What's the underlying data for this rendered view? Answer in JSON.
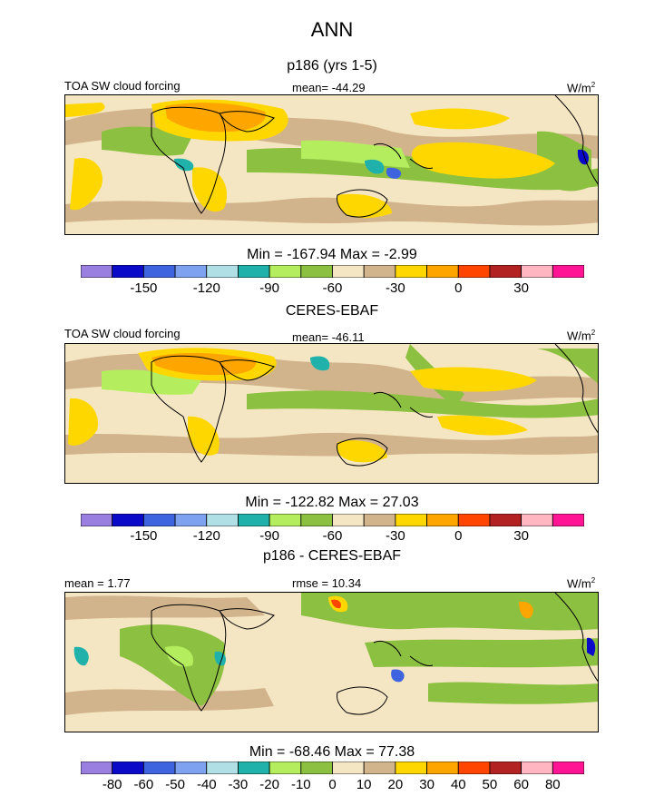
{
  "title": "ANN",
  "panels": [
    {
      "subtitle": "p186 (yrs 1-5)",
      "left_label": "TOA SW cloud forcing",
      "center_label": "mean= -44.29",
      "units": "W/m",
      "units_sup": "2",
      "minmax": "Min = -167.94 Max =  -2.99",
      "colorbar_ticks": [
        "-150",
        "-120",
        "-90",
        "-60",
        "-30",
        "0",
        "30"
      ]
    },
    {
      "subtitle": "CERES-EBAF",
      "left_label": "TOA SW cloud forcing",
      "center_label": "mean= -46.11",
      "units": "W/m",
      "units_sup": "2",
      "minmax": "Min = -122.82 Max =  27.03",
      "colorbar_ticks": [
        "-150",
        "-120",
        "-90",
        "-60",
        "-30",
        "0",
        "30"
      ]
    },
    {
      "subtitle": "p186 - CERES-EBAF",
      "left_label": "mean =   1.77",
      "center_label": "rmse =  10.34",
      "units": "W/m",
      "units_sup": "2",
      "minmax": "Min = -68.46 Max =  77.38",
      "colorbar_ticks": [
        "-80",
        "-60",
        "-50",
        "-40",
        "-30",
        "-20",
        "-10",
        "0",
        "10",
        "20",
        "30",
        "40",
        "50",
        "60",
        "80"
      ]
    }
  ],
  "colors": {
    "palette": [
      "#9b7fe0",
      "#0a0ac8",
      "#3f64e0",
      "#7ea2ef",
      "#b0e0e6",
      "#20b2aa",
      "#b4ee5e",
      "#8cc040",
      "#f5e6c3",
      "#d2b48c",
      "#ffd700",
      "#ffa500",
      "#ff4500",
      "#b22222",
      "#ffb6c1",
      "#ff1493"
    ],
    "ocean_bg": "#f5e6c3",
    "coast": "#000000"
  },
  "chart_data": [
    {
      "type": "heatmap",
      "title": "p186 (yrs 1-5)",
      "field": "TOA SW cloud forcing",
      "units": "W/m2",
      "mean": -44.29,
      "min": -167.94,
      "max": -2.99,
      "colorbar_levels": [
        -165,
        -150,
        -135,
        -120,
        -105,
        -90,
        -75,
        -60,
        -45,
        -30,
        -15,
        0,
        15,
        30,
        45
      ],
      "colorbar_ticks": [
        -150,
        -120,
        -90,
        -60,
        -30,
        0,
        30
      ]
    },
    {
      "type": "heatmap",
      "title": "CERES-EBAF",
      "field": "TOA SW cloud forcing",
      "units": "W/m2",
      "mean": -46.11,
      "min": -122.82,
      "max": 27.03,
      "colorbar_levels": [
        -165,
        -150,
        -135,
        -120,
        -105,
        -90,
        -75,
        -60,
        -45,
        -30,
        -15,
        0,
        15,
        30,
        45
      ],
      "colorbar_ticks": [
        -150,
        -120,
        -90,
        -60,
        -30,
        0,
        30
      ]
    },
    {
      "type": "heatmap",
      "title": "p186 - CERES-EBAF",
      "units": "W/m2",
      "mean": 1.77,
      "rmse": 10.34,
      "min": -68.46,
      "max": 77.38,
      "colorbar_levels": [
        -80,
        -60,
        -50,
        -40,
        -30,
        -20,
        -10,
        0,
        10,
        20,
        30,
        40,
        50,
        60,
        80
      ],
      "colorbar_ticks": [
        -80,
        -60,
        -50,
        -40,
        -30,
        -20,
        -10,
        0,
        10,
        20,
        30,
        40,
        50,
        60,
        80
      ]
    }
  ]
}
